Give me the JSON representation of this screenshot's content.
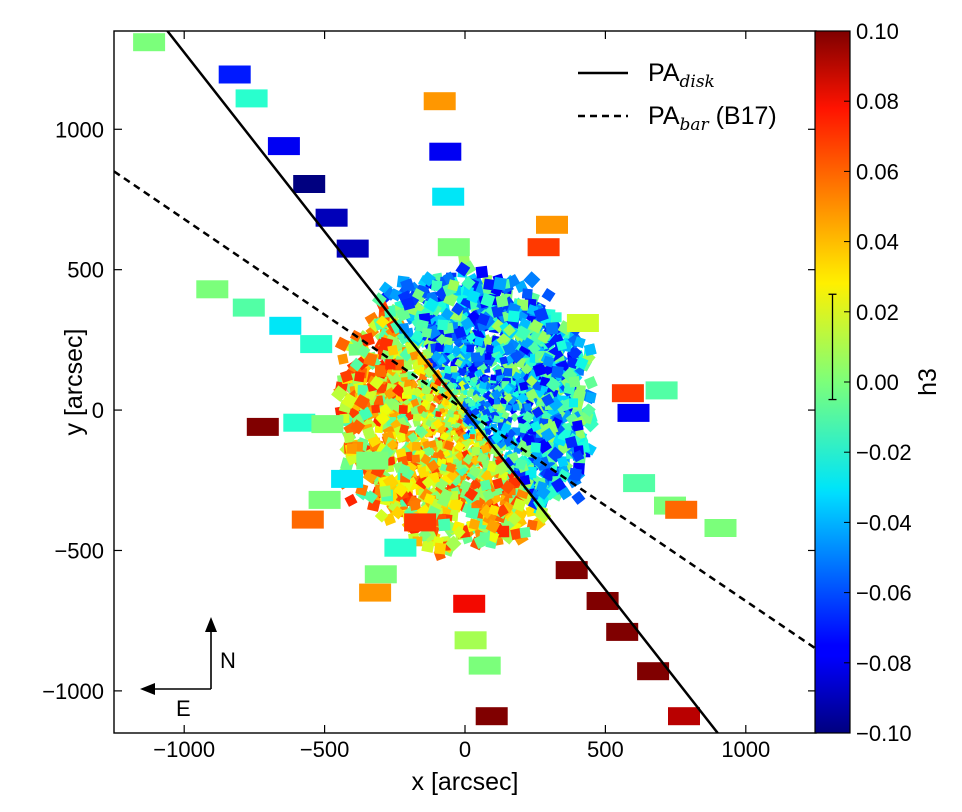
{
  "chart_data": {
    "type": "scatter",
    "xlabel": "x [arcsec]",
    "ylabel": "y [arcsec]",
    "xlim": [
      -1250,
      1250
    ],
    "ylim": [
      -1150,
      1350
    ],
    "x_ticks": [
      {
        "value": -1000,
        "label": "−1000"
      },
      {
        "value": -500,
        "label": "−500"
      },
      {
        "value": 0,
        "label": "0"
      },
      {
        "value": 500,
        "label": "500"
      },
      {
        "value": 1000,
        "label": "1000"
      }
    ],
    "y_ticks": [
      {
        "value": -1000,
        "label": "−1000"
      },
      {
        "value": -500,
        "label": "−500"
      },
      {
        "value": 0,
        "label": "0"
      },
      {
        "value": 500,
        "label": "500"
      },
      {
        "value": 1000,
        "label": "1000"
      }
    ],
    "colorbar": {
      "label": "h3",
      "range": [
        -0.1,
        0.1
      ],
      "colormap": "jet",
      "ticks": [
        {
          "value": 0.1,
          "label": "0.10"
        },
        {
          "value": 0.08,
          "label": "0.08"
        },
        {
          "value": 0.06,
          "label": "0.06"
        },
        {
          "value": 0.04,
          "label": "0.04"
        },
        {
          "value": 0.02,
          "label": "0.02"
        },
        {
          "value": 0.0,
          "label": "0.00"
        },
        {
          "value": -0.02,
          "label": "−0.02"
        },
        {
          "value": -0.04,
          "label": "−0.04"
        },
        {
          "value": -0.06,
          "label": "−0.06"
        },
        {
          "value": -0.08,
          "label": "−0.08"
        },
        {
          "value": -0.1,
          "label": "−0.10"
        }
      ],
      "error_bar": [
        -0.005,
        0.025
      ]
    },
    "legend": {
      "placement": "top-right",
      "entries": [
        {
          "main": "PA",
          "sub": "disk",
          "suffix": "",
          "style": "solid"
        },
        {
          "main": "PA",
          "sub": "bar",
          "suffix": " (B17)",
          "style": "dashed"
        }
      ]
    },
    "lines": [
      {
        "name": "PA disk",
        "style": "solid",
        "x": [
          -1060,
          900
        ],
        "y": [
          1350,
          -1150
        ]
      },
      {
        "name": "PA bar (B17)",
        "style": "dashed",
        "x": [
          -1250,
          1250
        ],
        "y": [
          850,
          -850
        ]
      }
    ],
    "compass": {
      "north": "N",
      "east": "E"
    },
    "outer_tiles": [
      {
        "x": -1125,
        "y": 1310,
        "h3": 0.0
      },
      {
        "x": -820,
        "y": 1195,
        "h3": -0.07
      },
      {
        "x": -760,
        "y": 1110,
        "h3": -0.02
      },
      {
        "x": -645,
        "y": 940,
        "h3": -0.08
      },
      {
        "x": -555,
        "y": 805,
        "h3": -0.1
      },
      {
        "x": -475,
        "y": 685,
        "h3": -0.09
      },
      {
        "x": -400,
        "y": 575,
        "h3": -0.09
      },
      {
        "x": -900,
        "y": 430,
        "h3": 0.0
      },
      {
        "x": -770,
        "y": 365,
        "h3": -0.01
      },
      {
        "x": -640,
        "y": 300,
        "h3": -0.03
      },
      {
        "x": -530,
        "y": 235,
        "h3": -0.02
      },
      {
        "x": -720,
        "y": -60,
        "h3": 0.1
      },
      {
        "x": -590,
        "y": -45,
        "h3": -0.02
      },
      {
        "x": -490,
        "y": -50,
        "h3": 0.0
      },
      {
        "x": -560,
        "y": -390,
        "h3": 0.06
      },
      {
        "x": -500,
        "y": -320,
        "h3": 0.0
      },
      {
        "x": -420,
        "y": -245,
        "h3": -0.03
      },
      {
        "x": -330,
        "y": -180,
        "h3": 0.0
      },
      {
        "x": -320,
        "y": -650,
        "h3": 0.05
      },
      {
        "x": -300,
        "y": -585,
        "h3": 0.0
      },
      {
        "x": -230,
        "y": -490,
        "h3": -0.02
      },
      {
        "x": -160,
        "y": -400,
        "h3": 0.07
      },
      {
        "x": -90,
        "y": 1100,
        "h3": 0.05
      },
      {
        "x": -70,
        "y": 920,
        "h3": -0.08
      },
      {
        "x": -60,
        "y": 760,
        "h3": -0.03
      },
      {
        "x": -40,
        "y": 580,
        "h3": 0.0
      },
      {
        "x": 15,
        "y": -690,
        "h3": 0.08
      },
      {
        "x": 20,
        "y": -820,
        "h3": 0.01
      },
      {
        "x": 70,
        "y": -910,
        "h3": 0.0
      },
      {
        "x": 95,
        "y": -1090,
        "h3": 0.1
      },
      {
        "x": 310,
        "y": 660,
        "h3": 0.05
      },
      {
        "x": 280,
        "y": 580,
        "h3": 0.07
      },
      {
        "x": 420,
        "y": 310,
        "h3": 0.02
      },
      {
        "x": 580,
        "y": 60,
        "h3": 0.07
      },
      {
        "x": 700,
        "y": 70,
        "h3": -0.01
      },
      {
        "x": 600,
        "y": -10,
        "h3": -0.08
      },
      {
        "x": 620,
        "y": -260,
        "h3": -0.01
      },
      {
        "x": 730,
        "y": -340,
        "h3": 0.0
      },
      {
        "x": 770,
        "y": -355,
        "h3": 0.06
      },
      {
        "x": 910,
        "y": -420,
        "h3": 0.0
      },
      {
        "x": 380,
        "y": -570,
        "h3": 0.1
      },
      {
        "x": 490,
        "y": -680,
        "h3": 0.1
      },
      {
        "x": 560,
        "y": -790,
        "h3": 0.1
      },
      {
        "x": 670,
        "y": -930,
        "h3": 0.1
      },
      {
        "x": 780,
        "y": -1090,
        "h3": 0.09
      }
    ]
  }
}
